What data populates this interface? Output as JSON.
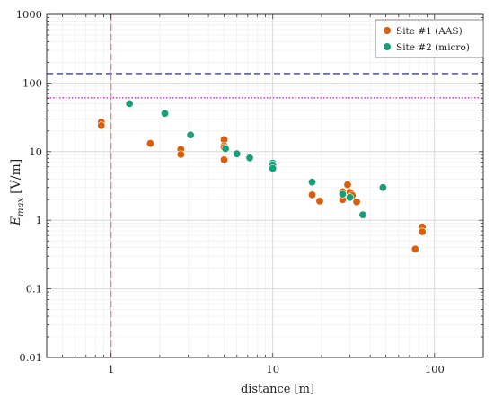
{
  "chart_data": {
    "type": "scatter",
    "title": "",
    "xlabel": "distance [m]",
    "ylabel_main": "E",
    "ylabel_sub": "max",
    "ylabel_unit": "[V/m]",
    "x_scale": "log",
    "y_scale": "log",
    "xlim": [
      0.4,
      200
    ],
    "ylim": [
      0.01,
      1000
    ],
    "x_ticks": [
      {
        "value": 1,
        "label": "1"
      },
      {
        "value": 10,
        "label": "10"
      },
      {
        "value": 100,
        "label": "100"
      }
    ],
    "y_ticks": [
      {
        "value": 0.01,
        "label": "0.01"
      },
      {
        "value": 0.1,
        "label": "0.1"
      },
      {
        "value": 1,
        "label": "1"
      },
      {
        "value": 10,
        "label": "10"
      },
      {
        "value": 100,
        "label": "100"
      },
      {
        "value": 1000,
        "label": "1000"
      }
    ],
    "grid": true,
    "legend_position": "top-right",
    "reference_lines": [
      {
        "orientation": "horizontal",
        "value": 137,
        "color": "#3333ee",
        "style": "dashed"
      },
      {
        "orientation": "horizontal",
        "value": 61,
        "color": "#cc33cc",
        "style": "dotted"
      },
      {
        "orientation": "vertical",
        "value": 1,
        "color": "#f08080",
        "style": "dashed"
      }
    ],
    "series": [
      {
        "name": "Site #1 (AAS)",
        "color": "#d95f0e",
        "points": [
          [
            0.87,
            27
          ],
          [
            0.87,
            24
          ],
          [
            1.75,
            13.2
          ],
          [
            2.7,
            10.8
          ],
          [
            2.7,
            9.1
          ],
          [
            5.0,
            15
          ],
          [
            5.0,
            12.2
          ],
          [
            5.0,
            11.5
          ],
          [
            5.0,
            7.6
          ],
          [
            17.5,
            2.35
          ],
          [
            19.5,
            1.9
          ],
          [
            27,
            2.6
          ],
          [
            27,
            2.35
          ],
          [
            27,
            2.0
          ],
          [
            29,
            3.3
          ],
          [
            30,
            2.55
          ],
          [
            31,
            2.3
          ],
          [
            33,
            1.85
          ],
          [
            76,
            0.38
          ],
          [
            84,
            0.8
          ],
          [
            84,
            0.68
          ]
        ]
      },
      {
        "name": "Site #2 (micro)",
        "color": "#1b9e77",
        "points": [
          [
            1.3,
            50
          ],
          [
            2.15,
            36
          ],
          [
            3.1,
            17.5
          ],
          [
            5.1,
            11
          ],
          [
            6.0,
            9.3
          ],
          [
            7.2,
            8.1
          ],
          [
            10,
            6.8
          ],
          [
            10,
            6.4
          ],
          [
            10,
            5.7
          ],
          [
            17.5,
            3.6
          ],
          [
            27,
            2.4
          ],
          [
            30,
            2.15
          ],
          [
            36,
            1.2
          ],
          [
            48,
            3.0
          ]
        ]
      }
    ]
  }
}
